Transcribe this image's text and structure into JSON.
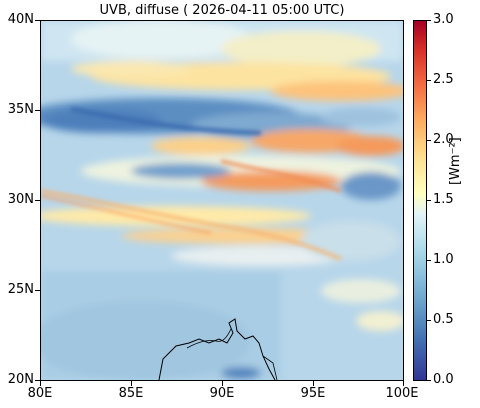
{
  "title": "UVB, diffuse ( 2026-04-11 05:00 UTC)",
  "map": {
    "lat_ticks": [
      "40N",
      "35N",
      "30N",
      "25N",
      "20N"
    ],
    "lon_ticks": [
      "80E",
      "85E",
      "90E",
      "95E",
      "100E"
    ],
    "lat_range": [
      20,
      40
    ],
    "lon_range": [
      80,
      100
    ]
  },
  "colorbar": {
    "label": "[Wm⁻²]",
    "ticks": [
      "3.0",
      "2.5",
      "2.0",
      "1.5",
      "1.0",
      "0.5",
      "0.0"
    ],
    "range": [
      0.0,
      3.0
    ],
    "colormap": [
      "#313695",
      "#4575b4",
      "#74add1",
      "#abd9e9",
      "#e0f3f8",
      "#ffffbf",
      "#fee090",
      "#fdae61",
      "#f46d43",
      "#d73027",
      "#a50026"
    ]
  }
}
